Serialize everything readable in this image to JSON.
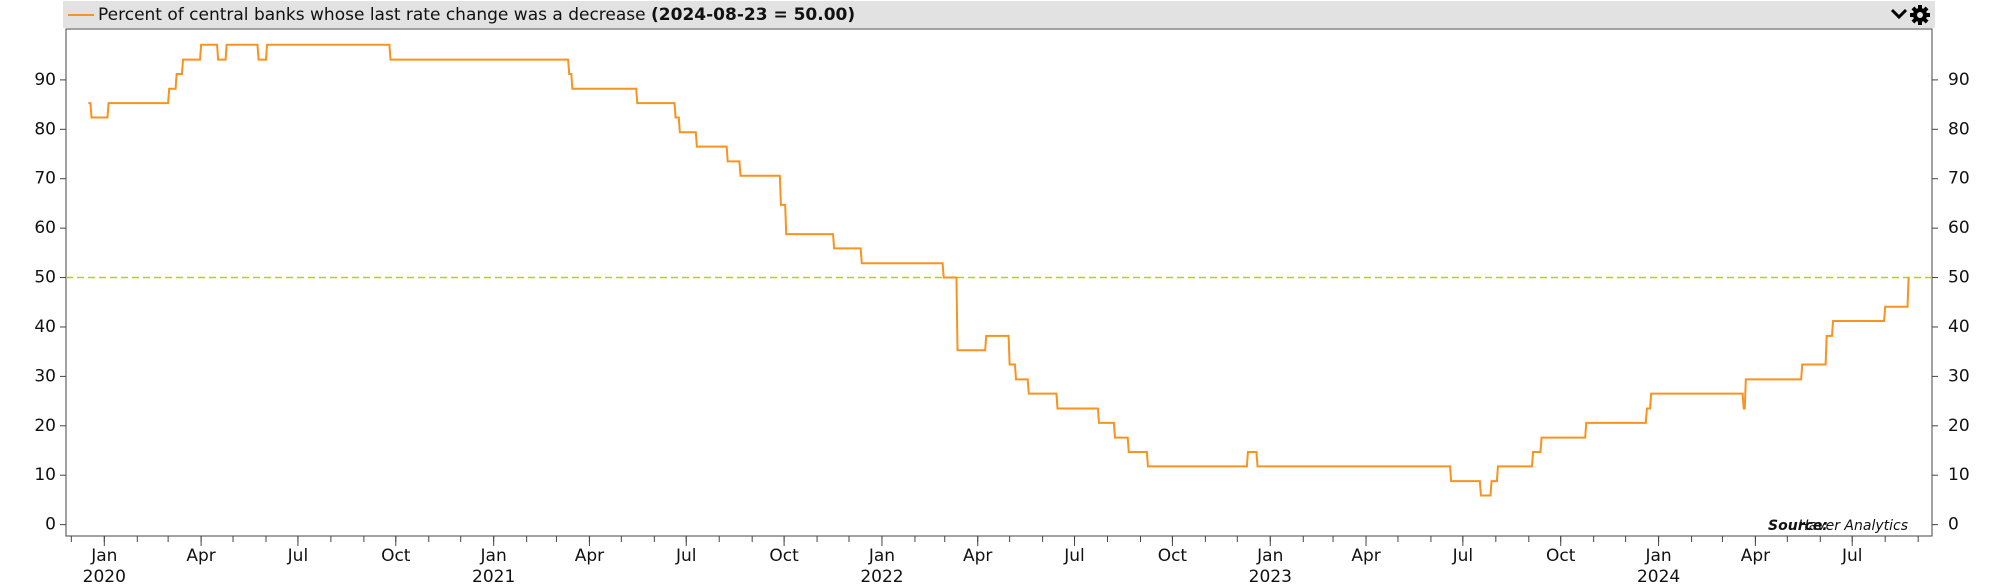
{
  "chart_data": {
    "type": "line",
    "title": "Percent of central banks whose last rate change was a decrease",
    "title_value": "(2024-08-23 = 50.00)",
    "source_label": "Source:",
    "source": "Haver Analytics",
    "x": [
      "2019-12-17",
      "2019-12-19",
      "2019-12-20",
      "2020-01-04",
      "2020-01-05",
      "2020-03-01",
      "2020-03-02",
      "2020-03-08",
      "2020-03-09",
      "2020-03-14",
      "2020-03-15",
      "2020-03-31",
      "2020-04-01",
      "2020-04-16",
      "2020-04-17",
      "2020-04-24",
      "2020-04-25",
      "2020-05-24",
      "2020-05-25",
      "2020-06-01",
      "2020-06-02",
      "2020-09-25",
      "2020-09-26",
      "2021-03-12",
      "2021-03-13",
      "2021-03-15",
      "2021-03-16",
      "2021-05-15",
      "2021-05-16",
      "2021-06-20",
      "2021-06-21",
      "2021-06-24",
      "2021-06-25",
      "2021-07-10",
      "2021-07-11",
      "2021-08-08",
      "2021-08-09",
      "2021-08-20",
      "2021-08-21",
      "2021-09-27",
      "2021-09-28",
      "2021-10-02",
      "2021-10-03",
      "2021-11-16",
      "2021-11-17",
      "2021-12-12",
      "2021-12-13",
      "2022-02-27",
      "2022-02-28",
      "2022-03-12",
      "2022-03-13",
      "2022-04-08",
      "2022-04-09",
      "2022-04-30",
      "2022-05-01",
      "2022-05-06",
      "2022-05-07",
      "2022-05-18",
      "2022-05-19",
      "2022-06-14",
      "2022-06-15",
      "2022-07-23",
      "2022-07-24",
      "2022-08-07",
      "2022-08-08",
      "2022-08-20",
      "2022-08-21",
      "2022-09-07",
      "2022-09-08",
      "2022-12-10",
      "2022-12-11",
      "2022-12-19",
      "2022-12-20",
      "2023-06-19",
      "2023-06-20",
      "2023-07-17",
      "2023-07-18",
      "2023-07-27",
      "2023-07-28",
      "2023-08-02",
      "2023-08-03",
      "2023-09-04",
      "2023-09-05",
      "2023-09-12",
      "2023-09-13",
      "2023-10-24",
      "2023-10-25",
      "2023-12-20",
      "2023-12-21",
      "2023-12-24",
      "2023-12-25",
      "2024-03-20",
      "2024-03-21",
      "2024-03-22",
      "2024-03-23",
      "2024-05-14",
      "2024-05-15",
      "2024-06-06",
      "2024-06-07",
      "2024-06-12",
      "2024-06-13",
      "2024-07-31",
      "2024-08-01",
      "2024-08-13",
      "2024-08-14",
      "2024-08-22",
      "2024-08-23"
    ],
    "series": [
      {
        "name": "Percent of central banks whose last rate change was a decrease",
        "color": "#f7931e",
        "values": [
          85.3,
          85.3,
          82.4,
          82.4,
          85.3,
          85.3,
          88.2,
          88.2,
          91.2,
          91.2,
          94.1,
          94.1,
          97.1,
          97.1,
          94.1,
          94.1,
          97.1,
          97.1,
          94.1,
          94.1,
          97.1,
          97.1,
          94.1,
          94.1,
          91.2,
          91.2,
          88.2,
          88.2,
          85.3,
          85.3,
          82.4,
          82.4,
          79.4,
          79.4,
          76.5,
          76.5,
          73.5,
          73.5,
          70.6,
          70.6,
          64.7,
          64.7,
          58.8,
          58.8,
          55.9,
          55.9,
          52.9,
          52.9,
          50,
          50,
          35.3,
          35.3,
          38.2,
          38.2,
          32.4,
          32.4,
          29.4,
          29.4,
          26.5,
          26.5,
          23.5,
          23.5,
          20.6,
          20.6,
          17.6,
          17.6,
          14.7,
          14.7,
          11.8,
          11.8,
          14.7,
          14.7,
          11.8,
          11.8,
          8.8,
          8.8,
          5.9,
          5.9,
          8.8,
          8.8,
          11.8,
          11.8,
          14.7,
          14.7,
          17.6,
          17.6,
          20.6,
          20.6,
          23.5,
          23.5,
          26.5,
          26.5,
          23.5,
          23.5,
          29.4,
          29.4,
          32.4,
          32.4,
          38.2,
          38.2,
          41.2,
          41.2,
          44.1,
          44.1,
          44.1,
          44.1,
          50
        ]
      }
    ],
    "reference_line": 50,
    "reference_color": "#b8d400",
    "xlim": [
      "2019-11-26",
      "2024-09-14"
    ],
    "ylim": [
      -2.3,
      100.3
    ],
    "yticks": [
      0,
      10,
      20,
      30,
      40,
      50,
      60,
      70,
      80,
      90
    ],
    "xticks": [
      {
        "value": "2020-01-01",
        "label": "Jan"
      },
      {
        "value": "2020-04-01",
        "label": "Apr"
      },
      {
        "value": "2020-07-01",
        "label": "Jul"
      },
      {
        "value": "2020-10-01",
        "label": "Oct"
      },
      {
        "value": "2021-01-01",
        "label": "Jan"
      },
      {
        "value": "2021-04-01",
        "label": "Apr"
      },
      {
        "value": "2021-07-01",
        "label": "Jul"
      },
      {
        "value": "2021-10-01",
        "label": "Oct"
      },
      {
        "value": "2022-01-01",
        "label": "Jan"
      },
      {
        "value": "2022-04-01",
        "label": "Apr"
      },
      {
        "value": "2022-07-01",
        "label": "Jul"
      },
      {
        "value": "2022-10-01",
        "label": "Oct"
      },
      {
        "value": "2023-01-01",
        "label": "Jan"
      },
      {
        "value": "2023-04-01",
        "label": "Apr"
      },
      {
        "value": "2023-07-01",
        "label": "Jul"
      },
      {
        "value": "2023-10-01",
        "label": "Oct"
      },
      {
        "value": "2024-01-01",
        "label": "Jan"
      },
      {
        "value": "2024-04-01",
        "label": "Apr"
      },
      {
        "value": "2024-07-01",
        "label": "Jul"
      }
    ],
    "xticks_years": [
      {
        "value": "2020-01-01",
        "label": "2020"
      },
      {
        "value": "2021-01-01",
        "label": "2021"
      },
      {
        "value": "2022-01-01",
        "label": "2022"
      },
      {
        "value": "2023-01-01",
        "label": "2023"
      },
      {
        "value": "2024-01-01",
        "label": "2024"
      }
    ],
    "xticks_minor": [
      "2019-12-01",
      "2020-01-01",
      "2020-02-01",
      "2020-03-01",
      "2020-04-01",
      "2020-05-01",
      "2020-06-01",
      "2020-07-01",
      "2020-08-01",
      "2020-09-01",
      "2020-10-01",
      "2020-11-01",
      "2020-12-01",
      "2021-01-01",
      "2021-02-01",
      "2021-03-01",
      "2021-04-01",
      "2021-05-01",
      "2021-06-01",
      "2021-07-01",
      "2021-08-01",
      "2021-09-01",
      "2021-10-01",
      "2021-11-01",
      "2021-12-01",
      "2022-01-01",
      "2022-02-01",
      "2022-03-01",
      "2022-04-01",
      "2022-05-01",
      "2022-06-01",
      "2022-07-01",
      "2022-08-01",
      "2022-09-01",
      "2022-10-01",
      "2022-11-01",
      "2022-12-01",
      "2023-01-01",
      "2023-02-01",
      "2023-03-01",
      "2023-04-01",
      "2023-05-01",
      "2023-06-01",
      "2023-07-01",
      "2023-08-01",
      "2023-09-01",
      "2023-10-01",
      "2023-11-01",
      "2023-12-01",
      "2024-01-01",
      "2024-02-01",
      "2024-03-01",
      "2024-04-01",
      "2024-05-01",
      "2024-06-01",
      "2024-07-01",
      "2024-08-01",
      "2024-09-01"
    ]
  }
}
